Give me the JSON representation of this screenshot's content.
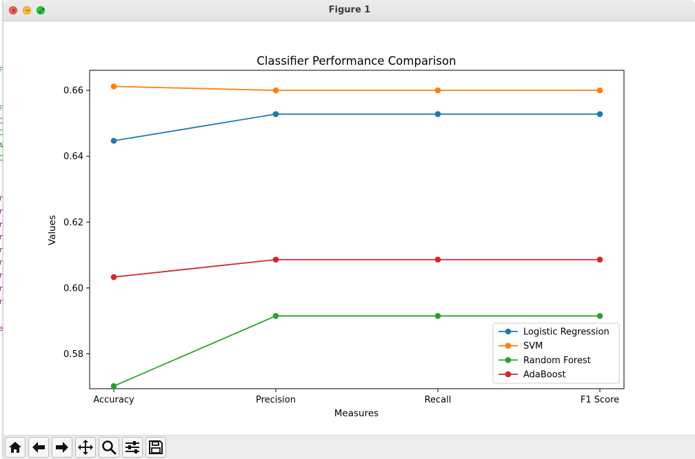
{
  "window": {
    "title": "Figure 1"
  },
  "traffic_lights": {
    "close_icon": "close-icon",
    "minimize_icon": "minimize-icon",
    "maximize_icon": "fullscreen-icon"
  },
  "background_terminal_glyphs": [
    {
      "ch": "F",
      "color": "#2ca02c"
    },
    {
      "ch": "F",
      "color": "#2ca02c"
    },
    {
      "ch": "C",
      "color": "#2ca02c"
    },
    {
      "ch": "C",
      "color": "#2ca02c"
    },
    {
      "ch": "A",
      "color": "#2ca02c"
    },
    {
      "ch": "C",
      "color": "#2ca02c"
    },
    {
      "ch": "r",
      "color": "#a020a0"
    },
    {
      "ch": "r",
      "color": "#a020a0"
    },
    {
      "ch": "r",
      "color": "#a020a0"
    },
    {
      "ch": "r",
      "color": "#a020a0"
    },
    {
      "ch": "r",
      "color": "#a020a0"
    },
    {
      "ch": "r",
      "color": "#a020a0"
    },
    {
      "ch": "r",
      "color": "#a020a0"
    },
    {
      "ch": "r",
      "color": "#a020a0"
    },
    {
      "ch": "r",
      "color": "#a020a0"
    },
    {
      "ch": "e",
      "color": "#a020a0"
    }
  ],
  "toolbar": {
    "buttons": [
      {
        "name": "home-icon",
        "tooltip": "Reset original view"
      },
      {
        "name": "back-arrow-icon",
        "tooltip": "Back to previous view"
      },
      {
        "name": "forward-arrow-icon",
        "tooltip": "Forward to next view"
      },
      {
        "name": "pan-move-icon",
        "tooltip": "Pan"
      },
      {
        "name": "zoom-magnifier-icon",
        "tooltip": "Zoom to rectangle"
      },
      {
        "name": "configure-subplots-icon",
        "tooltip": "Configure subplots"
      },
      {
        "name": "save-disk-icon",
        "tooltip": "Save the figure"
      }
    ]
  },
  "chart_data": {
    "type": "line",
    "title": "Classifier Performance Comparison",
    "xlabel": "Measures",
    "ylabel": "Values",
    "categories": [
      "Accuracy",
      "Precision",
      "Recall",
      "F1 Score"
    ],
    "ylim": [
      0.5694,
      0.6661
    ],
    "yticks": [
      0.58,
      0.6,
      0.62,
      0.64,
      0.66
    ],
    "ytick_labels": [
      "0.58",
      "0.60",
      "0.62",
      "0.64",
      "0.66"
    ],
    "grid": false,
    "legend_position": "lower right",
    "marker": "circle",
    "series": [
      {
        "name": "Logistic Regression",
        "color": "#1f77b4",
        "values": [
          0.6447,
          0.6528,
          0.6528,
          0.6528
        ]
      },
      {
        "name": "SVM",
        "color": "#ff7f0e",
        "values": [
          0.6612,
          0.66,
          0.66,
          0.66
        ]
      },
      {
        "name": "Random Forest",
        "color": "#2ca02c",
        "values": [
          0.5702,
          0.5915,
          0.5915,
          0.5915
        ]
      },
      {
        "name": "AdaBoost",
        "color": "#d62728",
        "values": [
          0.6033,
          0.6086,
          0.6086,
          0.6086
        ]
      }
    ]
  }
}
